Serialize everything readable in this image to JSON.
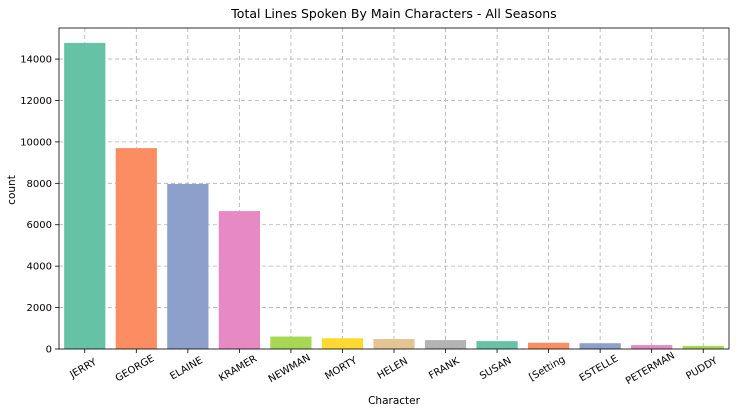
{
  "chart_data": {
    "type": "bar",
    "title": "Total Lines Spoken By Main Characters - All Seasons",
    "xlabel": "Character",
    "ylabel": "count",
    "categories": [
      "JERRY",
      "GEORGE",
      "ELAINE",
      "KRAMER",
      "NEWMAN",
      "MORTY",
      "HELEN",
      "FRANK",
      "SUSAN",
      "[Setting",
      "ESTELLE",
      "PETERMAN",
      "PUDDY"
    ],
    "values": [
      14780,
      9700,
      7970,
      6660,
      600,
      520,
      480,
      430,
      380,
      300,
      280,
      190,
      150
    ],
    "colors": [
      "#66c2a5",
      "#fc8d62",
      "#8da0cb",
      "#e78ac3",
      "#a6d854",
      "#ffd92f",
      "#e5c494",
      "#b3b3b3",
      "#66c2a5",
      "#fc8d62",
      "#8da0cb",
      "#e78ac3",
      "#a6d854"
    ],
    "ylim": [
      0,
      15500
    ],
    "yticks": [
      0,
      2000,
      4000,
      6000,
      8000,
      10000,
      12000,
      14000
    ],
    "grid": true,
    "legend": "none"
  }
}
